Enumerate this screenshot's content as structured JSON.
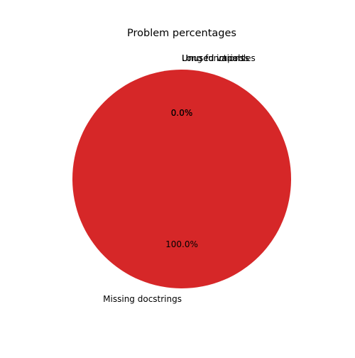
{
  "chart_data": {
    "type": "pie",
    "title": "Problem percentages",
    "slices": [
      {
        "label": "Unused variables",
        "value": 0.0,
        "pct_label": "0.0%",
        "color": "#1f77b4"
      },
      {
        "label": "Unused imports",
        "value": 0.0,
        "pct_label": "0.0%",
        "color": "#ff7f0e"
      },
      {
        "label": "Long functions",
        "value": 0.0,
        "pct_label": "0.0%",
        "color": "#2ca02c"
      },
      {
        "label": "Missing docstrings",
        "value": 100.0,
        "pct_label": "100.0%",
        "color": "#d62728"
      }
    ],
    "start_angle_deg": 90,
    "direction": "counterclockwise"
  }
}
